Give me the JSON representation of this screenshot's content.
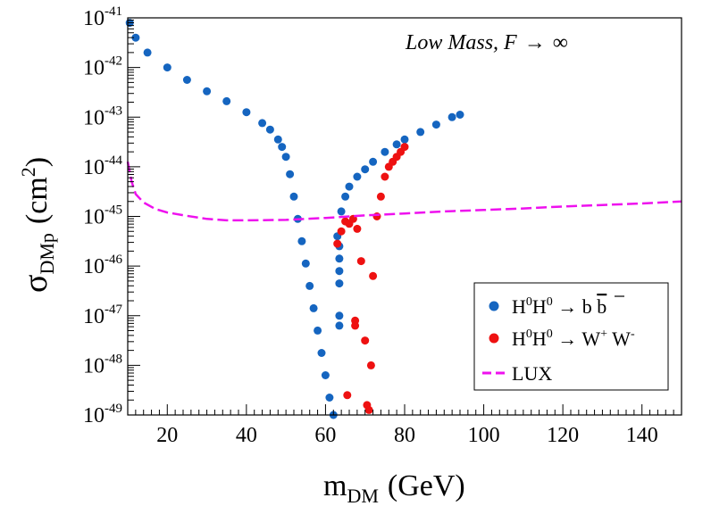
{
  "chart_data": {
    "type": "scatter",
    "title": "",
    "annotation": {
      "prefix": "Low Mass, ",
      "var": "F",
      "arrow": "→",
      "inf": "∞"
    },
    "xlabel": {
      "base": "m",
      "sub": "DM",
      "rest": "(GeV)"
    },
    "ylabel": {
      "base": "σ",
      "sub": "DMp",
      "rest_open": "(cm",
      "sup": "2",
      "rest_close": ")"
    },
    "xlim": [
      10,
      150
    ],
    "ylim_log10": [
      -49,
      -41
    ],
    "x_ticks": [
      20,
      40,
      60,
      80,
      100,
      120,
      140
    ],
    "y_ticks": [
      {
        "base": "10",
        "exp": "-41",
        "value": -41
      },
      {
        "base": "10",
        "exp": "-42",
        "value": -42
      },
      {
        "base": "10",
        "exp": "-43",
        "value": -43
      },
      {
        "base": "10",
        "exp": "-44",
        "value": -44
      },
      {
        "base": "10",
        "exp": "-45",
        "value": -45
      },
      {
        "base": "10",
        "exp": "-46",
        "value": -46
      },
      {
        "base": "10",
        "exp": "-47",
        "value": -47
      },
      {
        "base": "10",
        "exp": "-48",
        "value": -48
      },
      {
        "base": "10",
        "exp": "-49",
        "value": -49
      }
    ],
    "legend": [
      {
        "id": "bb",
        "label_parts": [
          "H",
          "0",
          "H",
          "0",
          " → b ",
          "b"
        ],
        "text": "H⁰H⁰ → b b̄",
        "color": "#1565c0",
        "marker": "dot"
      },
      {
        "id": "ww",
        "label_parts": [
          "H",
          "0",
          "H",
          "0",
          " → W",
          "+",
          " W",
          "-"
        ],
        "text": "H⁰H⁰ → W⁺ W⁻",
        "color": "#ee1111",
        "marker": "dot"
      },
      {
        "id": "lux",
        "text": "LUX",
        "color": "#ee11ee",
        "marker": "dashed-line"
      }
    ],
    "series": [
      {
        "name": "H0H0 -> b bbar (main branch)",
        "color": "#1565c0",
        "x": [
          10.5,
          12,
          15,
          20,
          25,
          30,
          35,
          40,
          44,
          46,
          48,
          49,
          50,
          51,
          52,
          53,
          54,
          55,
          56,
          57,
          58,
          59,
          60,
          61,
          62
        ],
        "log10_y": [
          -41.1,
          -41.4,
          -41.7,
          -42.0,
          -42.25,
          -42.48,
          -42.68,
          -42.9,
          -43.12,
          -43.25,
          -43.45,
          -43.6,
          -43.8,
          -44.15,
          -44.6,
          -45.05,
          -45.5,
          -45.95,
          -46.4,
          -46.85,
          -47.3,
          -47.75,
          -48.2,
          -48.65,
          -49.0
        ]
      },
      {
        "name": "H0H0 -> b bbar (upper branch)",
        "color": "#1565c0",
        "x": [
          63,
          64,
          65,
          66,
          68,
          70,
          72,
          75,
          78,
          80,
          84,
          88,
          92,
          94
        ],
        "log10_y": [
          -45.4,
          -44.9,
          -44.6,
          -44.4,
          -44.2,
          -44.05,
          -43.9,
          -43.7,
          -43.55,
          -43.45,
          -43.3,
          -43.15,
          -43.0,
          -42.95
        ]
      },
      {
        "name": "H0H0 -> b bbar (isolated points)",
        "color": "#1565c0",
        "x": [
          63.5,
          63.5,
          63.5,
          63.5,
          63.5,
          63.5
        ],
        "log10_y": [
          -45.6,
          -45.85,
          -46.1,
          -46.35,
          -47.0,
          -47.2
        ]
      },
      {
        "name": "H0H0 -> W+ W- (main)",
        "color": "#ee1111",
        "x": [
          63,
          64,
          65,
          66,
          67,
          68,
          69,
          70,
          70.5,
          71,
          71.5,
          72,
          73,
          74,
          75,
          76,
          77,
          78,
          79,
          80
        ],
        "log10_y": [
          -45.55,
          -45.3,
          -45.1,
          -45.15,
          -45.05,
          -45.25,
          -45.9,
          -47.5,
          -48.8,
          -48.9,
          -48.0,
          -46.2,
          -45.0,
          -44.6,
          -44.2,
          -44.0,
          -43.9,
          -43.8,
          -43.7,
          -43.6
        ]
      },
      {
        "name": "H0H0 -> W+ W- (isolated points)",
        "color": "#ee1111",
        "x": [
          65.5,
          67.5,
          67.5
        ],
        "log10_y": [
          -48.6,
          -47.1,
          -47.2
        ]
      },
      {
        "name": "LUX",
        "color": "#ee11ee",
        "style": "dashed",
        "x": [
          10,
          11,
          12,
          14,
          17,
          20,
          25,
          30,
          35,
          40,
          50,
          60,
          70,
          80,
          90,
          100,
          110,
          120,
          130,
          140,
          150
        ],
        "log10_y": [
          -43.9,
          -44.3,
          -44.55,
          -44.72,
          -44.85,
          -44.92,
          -44.99,
          -45.05,
          -45.08,
          -45.08,
          -45.07,
          -45.03,
          -44.98,
          -44.94,
          -44.9,
          -44.87,
          -44.84,
          -44.8,
          -44.77,
          -44.74,
          -44.7
        ]
      }
    ]
  }
}
